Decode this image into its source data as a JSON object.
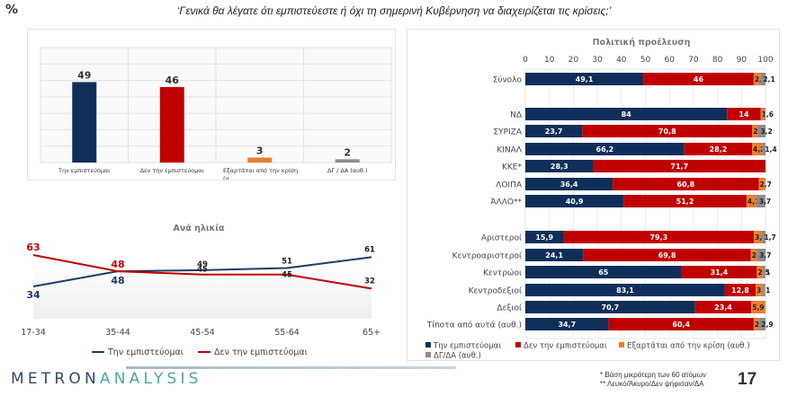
{
  "header": {
    "percent_sign": "%",
    "question": "‘Γενικά θα λέγατε ότι εμπιστεύεστε ή όχι τη σημερινή Κυβέρνηση να διαχειρίζεται τις κρίσεις;’"
  },
  "colors": {
    "trust": "#0f2f5a",
    "distrust": "#c00000",
    "depends": "#ed7d31",
    "dk": "#8c8c8c"
  },
  "chart_data": [
    {
      "id": "overall",
      "type": "bar",
      "title": "",
      "categories": [
        "Την εμπιστεύομαι",
        "Δεν την εμπιστεύομαι",
        "Εξαρτάται από την κρίση (α...",
        "ΔΓ / ΔΑ (αυθ.)"
      ],
      "category_lines": [
        [
          "Την εμπιστεύομαι"
        ],
        [
          "Δεν την εμπιστεύομαι"
        ],
        [
          "Εξαρτάται από την κρίση",
          "(α..."
        ],
        [
          "ΔΓ / ΔΑ (αυθ.)"
        ]
      ],
      "values": [
        49,
        46,
        3,
        2
      ],
      "value_labels": [
        "49",
        "46",
        "3",
        "2"
      ],
      "colors": [
        "#0f2f5a",
        "#c00000",
        "#ed7d31",
        "#8c8c8c"
      ],
      "ylim": [
        0,
        70
      ],
      "grid": true,
      "xlabel": "",
      "ylabel": ""
    },
    {
      "id": "by-age",
      "type": "line",
      "title": "Ανά ηλικία",
      "categories": [
        "17-34",
        "35-44",
        "45-54",
        "55-64",
        "65+"
      ],
      "series": [
        {
          "name": "Την εμπιστεύομαι",
          "color": "#1f3b63",
          "values": [
            34,
            48,
            49,
            51,
            61
          ]
        },
        {
          "name": "Δεν την εμπιστεύομαι",
          "color": "#c00000",
          "values": [
            63,
            48,
            45,
            45,
            32
          ]
        }
      ],
      "legend": "bottom",
      "grid": false
    },
    {
      "id": "political-origin",
      "type": "bar",
      "orientation": "horizontal-stacked",
      "title": "Πολιτική προέλευση",
      "xlim": [
        0,
        100
      ],
      "xticks": [
        "0",
        "10",
        "20",
        "30",
        "40",
        "50",
        "60",
        "70",
        "80",
        "90",
        "100"
      ],
      "series_names": [
        "Την εμπιστεύομαι",
        "Δεν την εμπιστεύομαι",
        "Εξαρτάται από την κρίση (αυθ.)",
        "ΔΓ/ΔΑ (αυθ.)"
      ],
      "categories": [
        {
          "label": "Σύνολο",
          "values": [
            49.1,
            46,
            2.8,
            2.1
          ],
          "labels": [
            "49,1",
            "46",
            "2,8",
            "2,1"
          ]
        },
        {
          "label": "",
          "values": [],
          "labels": [],
          "spacer": true
        },
        {
          "label": "ΝΔ",
          "values": [
            84,
            14,
            1.6,
            0.4
          ],
          "labels": [
            "84",
            "14",
            "1,6",
            ""
          ]
        },
        {
          "label": "ΣΥΡΙΖΑ",
          "values": [
            23.7,
            70.8,
            2.3,
            3.2
          ],
          "labels": [
            "23,7",
            "70,8",
            "2,3",
            "3,2"
          ]
        },
        {
          "label": "ΚΙΝΑΛ",
          "values": [
            66.2,
            28.2,
            4.2,
            1.4
          ],
          "labels": [
            "66,2",
            "28,2",
            "4,2",
            "1,4"
          ]
        },
        {
          "label": "ΚΚΕ*",
          "values": [
            28.3,
            71.7,
            0,
            0
          ],
          "labels": [
            "28,3",
            "71,7",
            "",
            ""
          ]
        },
        {
          "label": "ΛΟΙΠΑ",
          "values": [
            36.4,
            60.8,
            2.7,
            0.1
          ],
          "labels": [
            "36,4",
            "60,8",
            "2,7",
            ""
          ]
        },
        {
          "label": "ΆΛΛΟ**",
          "values": [
            40.9,
            51.2,
            4.1,
            3.7
          ],
          "labels": [
            "40,9",
            "51,2",
            "4,1",
            "3,7"
          ]
        },
        {
          "label": "",
          "values": [],
          "labels": [],
          "spacer": true
        },
        {
          "label": "Αριστεροί",
          "values": [
            15.9,
            79.3,
            3.1,
            1.7
          ],
          "labels": [
            "15,9",
            "79,3",
            "3,1",
            "1,7"
          ]
        },
        {
          "label": "Κεντροαριστεροί",
          "values": [
            24.1,
            69.8,
            2.4,
            3.7
          ],
          "labels": [
            "24,1",
            "69,8",
            "2,4",
            "3,7"
          ]
        },
        {
          "label": "Κεντρώοι",
          "values": [
            65,
            31.4,
            2.5,
            1
          ],
          "labels": [
            "65",
            "31,4",
            "2,5",
            "1"
          ]
        },
        {
          "label": "Κεντροδεξιοί",
          "values": [
            83.1,
            12.8,
            3,
            1
          ],
          "labels": [
            "83,1",
            "12,8",
            "3",
            "1"
          ]
        },
        {
          "label": "Δεξιοί",
          "values": [
            70.7,
            23.4,
            5.9,
            0
          ],
          "labels": [
            "70,7",
            "23,4",
            "5,9",
            ""
          ]
        },
        {
          "label": "Τίποτα από αυτά (αυθ.)",
          "values": [
            34.7,
            60.4,
            2,
            2.9
          ],
          "labels": [
            "34,7",
            "60,4",
            "2",
            "2,9"
          ]
        }
      ],
      "legend": "bottom",
      "grid": true
    }
  ],
  "footer": {
    "logo_part1": "METRON",
    "logo_part2": "ANALYSIS",
    "note1": "*  Βάση μικρότερη των 60 ατόμων",
    "note2": "** Λευκό/Άκυρο/Δεν ψήφισαν/ΔΑ",
    "page_number": "17"
  }
}
